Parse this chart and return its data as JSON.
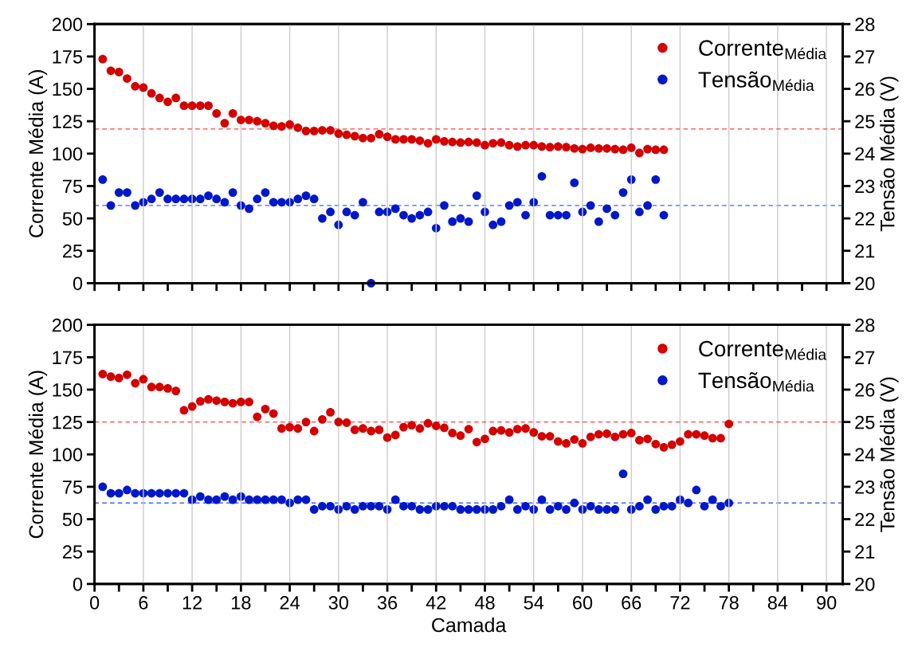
{
  "chart_data": [
    {
      "type": "scatter",
      "ylabel": "Corrente Média (A)",
      "y2label": "Tensão Média (V)",
      "marker": "circle",
      "grid": "x",
      "legend": "top right",
      "tick_labels": "y",
      "x": [
        1,
        2,
        3,
        4,
        5,
        6,
        7,
        8,
        9,
        10,
        11,
        12,
        13,
        14,
        15,
        16,
        17,
        18,
        19,
        20,
        21,
        22,
        23,
        24,
        25,
        26,
        27,
        28,
        29,
        30,
        31,
        32,
        33,
        34,
        35,
        36,
        37,
        38,
        39,
        40,
        41,
        42,
        43,
        44,
        45,
        46,
        47,
        48,
        49,
        50,
        51,
        52,
        53,
        54,
        55,
        56,
        57,
        58,
        59,
        60,
        61,
        62,
        63,
        64,
        65,
        66,
        67,
        68,
        69,
        70
      ],
      "xlim": [
        0,
        92
      ],
      "xticks": [
        0,
        {
          "value": 3,
          "label": null
        },
        6,
        {
          "value": 9,
          "label": null
        },
        12,
        {
          "value": 15,
          "label": null
        },
        18,
        {
          "value": 21,
          "label": null
        },
        24,
        {
          "value": 27,
          "label": null
        },
        30,
        {
          "value": 33,
          "label": null
        },
        36,
        {
          "value": 39,
          "label": null
        },
        42,
        {
          "value": 45,
          "label": null
        },
        48,
        {
          "value": 51,
          "label": null
        },
        54,
        {
          "value": 57,
          "label": null
        },
        60,
        {
          "value": 63,
          "label": null
        },
        66,
        {
          "value": 69,
          "label": null
        },
        72,
        {
          "value": 75,
          "label": null
        },
        78,
        {
          "value": 81,
          "label": null
        },
        84,
        {
          "value": 87,
          "label": null
        },
        90
      ],
      "ylim": [
        0,
        200
      ],
      "yticks": [
        0,
        25,
        50,
        75,
        100,
        125,
        150,
        175,
        200
      ],
      "y2lim": [
        20,
        28
      ],
      "y2ticks": [
        20,
        21,
        22,
        23,
        24,
        25,
        26,
        27,
        28
      ],
      "series": [
        {
          "name": "Corrente$_{Média}$",
          "color": "#d40000",
          "values": [
            173,
            164,
            163,
            158,
            152,
            151,
            146.5,
            143,
            140,
            143,
            137,
            137,
            137,
            137,
            131,
            123.5,
            131,
            126,
            126,
            125,
            123.5,
            121.5,
            121,
            122.5,
            120,
            117.5,
            117.5,
            118,
            118,
            115.5,
            114.5,
            113.5,
            112,
            112,
            115,
            113,
            111,
            111,
            111,
            110,
            108,
            111,
            109.5,
            109,
            108.5,
            109,
            108.5,
            106.5,
            108,
            108.5,
            106.5,
            105.5,
            106.5,
            106.5,
            105.5,
            105,
            105.5,
            105,
            104,
            103.5,
            104.5,
            104,
            104,
            103.5,
            103,
            104.5,
            100.5,
            103.5,
            103,
            103
          ]
        },
        {
          "name": "Tensão$_{Média}$",
          "color": "#0018c8",
          "axis": "y2",
          "values": [
            23.2,
            22.4,
            22.8,
            22.8,
            22.4,
            22.5,
            22.6,
            22.8,
            22.6,
            22.6,
            22.6,
            22.6,
            22.6,
            22.7,
            22.6,
            22.5,
            22.8,
            22.4,
            22.3,
            22.6,
            22.8,
            22.5,
            22.5,
            22.5,
            22.6,
            22.7,
            22.6,
            22.0,
            22.2,
            21.8,
            22.2,
            22.1,
            22.5,
            20.0,
            22.2,
            22.2,
            22.3,
            22.1,
            22.0,
            22.1,
            22.2,
            21.7,
            22.4,
            21.9,
            22.0,
            21.9,
            22.7,
            22.2,
            21.8,
            21.9,
            22.4,
            22.5,
            22.1,
            22.5,
            23.3,
            22.1,
            22.1,
            22.1,
            23.1,
            22.2,
            22.4,
            21.9,
            22.3,
            22.1,
            22.8,
            23.2,
            22.2,
            22.4,
            23.2,
            22.1
          ]
        }
      ],
      "ref_lines": [
        {
          "axis": "y",
          "value": 119,
          "color": "#ff4040",
          "line_style": "dashed"
        },
        {
          "axis": "y2",
          "value": 22.4,
          "color": "#4060ff",
          "line_style": "dashed"
        }
      ]
    },
    {
      "type": "scatter",
      "xlabel": "Camada",
      "ylabel": "Corrente Média (A)",
      "y2label": "Tensão Média (V)",
      "marker": "circle",
      "grid": "x",
      "legend": "top right",
      "x": [
        1,
        2,
        3,
        4,
        5,
        6,
        7,
        8,
        9,
        10,
        11,
        12,
        13,
        14,
        15,
        16,
        17,
        18,
        19,
        20,
        21,
        22,
        23,
        24,
        25,
        26,
        27,
        28,
        29,
        30,
        31,
        32,
        33,
        34,
        35,
        36,
        37,
        38,
        39,
        40,
        41,
        42,
        43,
        44,
        45,
        46,
        47,
        48,
        49,
        50,
        51,
        52,
        53,
        54,
        55,
        56,
        57,
        58,
        59,
        60,
        61,
        62,
        63,
        64,
        65,
        66,
        67,
        68,
        69,
        70,
        71,
        72,
        73,
        74,
        75,
        76,
        77,
        78
      ],
      "xlim": [
        0,
        92
      ],
      "xticks": [
        0,
        {
          "value": 3,
          "label": null
        },
        6,
        {
          "value": 9,
          "label": null
        },
        12,
        {
          "value": 15,
          "label": null
        },
        18,
        {
          "value": 21,
          "label": null
        },
        24,
        {
          "value": 27,
          "label": null
        },
        30,
        {
          "value": 33,
          "label": null
        },
        36,
        {
          "value": 39,
          "label": null
        },
        42,
        {
          "value": 45,
          "label": null
        },
        48,
        {
          "value": 51,
          "label": null
        },
        54,
        {
          "value": 57,
          "label": null
        },
        60,
        {
          "value": 63,
          "label": null
        },
        66,
        {
          "value": 69,
          "label": null
        },
        72,
        {
          "value": 75,
          "label": null
        },
        78,
        {
          "value": 81,
          "label": null
        },
        84,
        {
          "value": 87,
          "label": null
        },
        90
      ],
      "ylim": [
        0,
        200
      ],
      "yticks": [
        0,
        25,
        50,
        75,
        100,
        125,
        150,
        175,
        200
      ],
      "y2lim": [
        20,
        28
      ],
      "y2ticks": [
        20,
        21,
        22,
        23,
        24,
        25,
        26,
        27,
        28
      ],
      "series": [
        {
          "name": "Corrente$_{Média}$",
          "color": "#d40000",
          "values": [
            162,
            160,
            159,
            161.5,
            155,
            158,
            152,
            152,
            151,
            149,
            134,
            137,
            141,
            142.5,
            141.5,
            140.5,
            139.5,
            140.5,
            140.5,
            129,
            135,
            131.5,
            120,
            121,
            120,
            125,
            118,
            127,
            132.5,
            125,
            124.5,
            119,
            120,
            118,
            119,
            113,
            115,
            121,
            122.5,
            120,
            124,
            122,
            120.5,
            116.5,
            114.5,
            119.5,
            109.5,
            112,
            118,
            118.5,
            117,
            119.5,
            120,
            117,
            114,
            114,
            110,
            108.5,
            111.5,
            108.5,
            113.5,
            115.5,
            116,
            113.5,
            115.5,
            116.5,
            111,
            112,
            108,
            105.5,
            107.5,
            110,
            115.5,
            115.5,
            114.5,
            112.5,
            112.5,
            123.5
          ]
        },
        {
          "name": "Tensão$_{Média}$",
          "color": "#0018c8",
          "axis": "y2",
          "values": [
            23.0,
            22.8,
            22.8,
            22.9,
            22.8,
            22.8,
            22.8,
            22.8,
            22.8,
            22.8,
            22.8,
            22.6,
            22.7,
            22.6,
            22.6,
            22.7,
            22.6,
            22.7,
            22.6,
            22.6,
            22.6,
            22.6,
            22.6,
            22.5,
            22.6,
            22.6,
            22.3,
            22.4,
            22.4,
            22.3,
            22.4,
            22.3,
            22.4,
            22.4,
            22.4,
            22.3,
            22.6,
            22.4,
            22.4,
            22.3,
            22.3,
            22.4,
            22.4,
            22.4,
            22.3,
            22.3,
            22.3,
            22.3,
            22.3,
            22.4,
            22.6,
            22.3,
            22.4,
            22.3,
            22.6,
            22.3,
            22.4,
            22.3,
            22.5,
            22.3,
            22.4,
            22.3,
            22.3,
            22.3,
            23.4,
            22.3,
            22.4,
            22.6,
            22.3,
            22.4,
            22.4,
            22.6,
            22.5,
            22.9,
            22.4,
            22.6,
            22.4,
            22.5
          ]
        }
      ],
      "ref_lines": [
        {
          "axis": "y",
          "value": 125,
          "color": "#ff4040",
          "line_style": "dashed"
        },
        {
          "axis": "y2",
          "value": 22.5,
          "color": "#4060ff",
          "line_style": "dashed"
        }
      ]
    }
  ]
}
